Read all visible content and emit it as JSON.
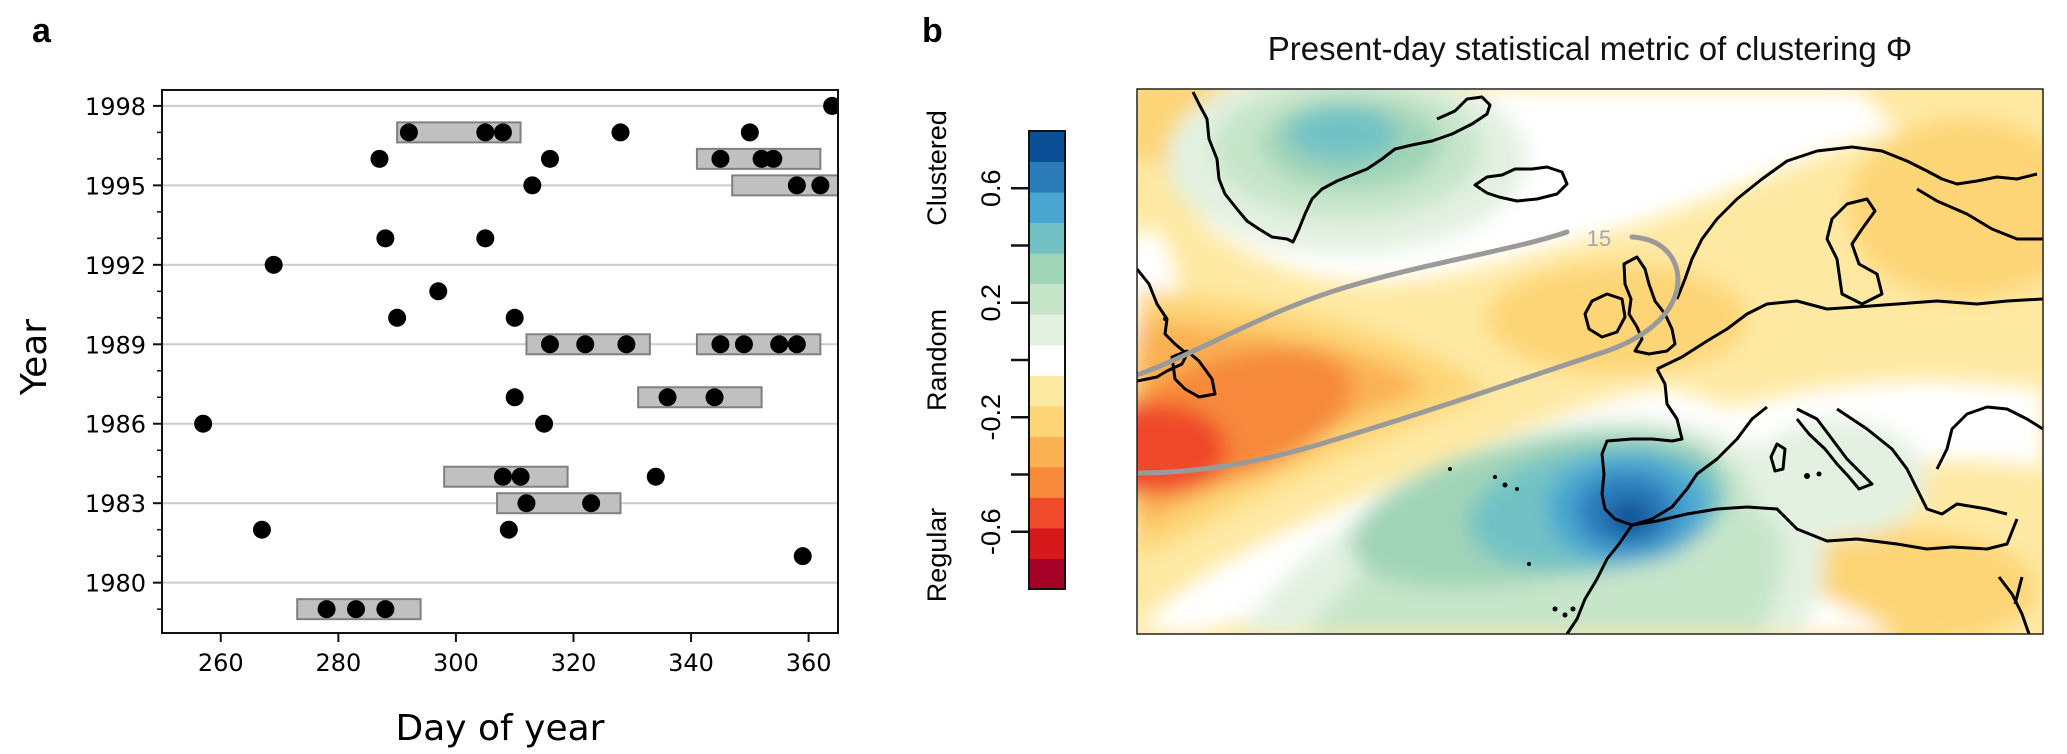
{
  "panels": {
    "a": {
      "label": "a"
    },
    "b": {
      "label": "b"
    }
  },
  "chart_data": [
    {
      "type": "scatter",
      "panel": "a",
      "title": "",
      "xlabel": "Day of year",
      "ylabel": "Year",
      "xlim": [
        250,
        365
      ],
      "ylim": [
        1978.1,
        1998.6
      ],
      "xticks": [
        260,
        280,
        300,
        320,
        340,
        360
      ],
      "yticks": [
        1980,
        1983,
        1986,
        1989,
        1992,
        1995,
        1998
      ],
      "ytick_labels": [
        "1980",
        "1983",
        "1986",
        "1989",
        "1992",
        "1995",
        "1998"
      ],
      "xtick_labels": [
        "260",
        "280",
        "300",
        "320",
        "340",
        "360"
      ],
      "yminor_step": 1,
      "grid": "horizontal at major y ticks",
      "points": [
        {
          "year": 1998,
          "day": 364
        },
        {
          "year": 1997,
          "day": 292
        },
        {
          "year": 1997,
          "day": 305
        },
        {
          "year": 1997,
          "day": 308
        },
        {
          "year": 1997,
          "day": 328
        },
        {
          "year": 1997,
          "day": 350
        },
        {
          "year": 1996,
          "day": 287
        },
        {
          "year": 1996,
          "day": 316
        },
        {
          "year": 1996,
          "day": 345
        },
        {
          "year": 1996,
          "day": 352
        },
        {
          "year": 1996,
          "day": 354
        },
        {
          "year": 1995,
          "day": 313
        },
        {
          "year": 1995,
          "day": 358
        },
        {
          "year": 1995,
          "day": 362
        },
        {
          "year": 1993,
          "day": 288
        },
        {
          "year": 1993,
          "day": 305
        },
        {
          "year": 1992,
          "day": 269
        },
        {
          "year": 1991,
          "day": 297
        },
        {
          "year": 1990,
          "day": 290
        },
        {
          "year": 1990,
          "day": 310
        },
        {
          "year": 1989,
          "day": 316
        },
        {
          "year": 1989,
          "day": 322
        },
        {
          "year": 1989,
          "day": 329
        },
        {
          "year": 1989,
          "day": 345
        },
        {
          "year": 1989,
          "day": 349
        },
        {
          "year": 1989,
          "day": 355
        },
        {
          "year": 1989,
          "day": 358
        },
        {
          "year": 1987,
          "day": 310
        },
        {
          "year": 1987,
          "day": 336
        },
        {
          "year": 1987,
          "day": 344
        },
        {
          "year": 1986,
          "day": 257
        },
        {
          "year": 1986,
          "day": 315
        },
        {
          "year": 1984,
          "day": 308
        },
        {
          "year": 1984,
          "day": 311
        },
        {
          "year": 1984,
          "day": 334
        },
        {
          "year": 1983,
          "day": 312
        },
        {
          "year": 1983,
          "day": 323
        },
        {
          "year": 1982,
          "day": 267
        },
        {
          "year": 1982,
          "day": 309
        },
        {
          "year": 1981,
          "day": 359
        },
        {
          "year": 1979,
          "day": 278
        },
        {
          "year": 1979,
          "day": 283
        },
        {
          "year": 1979,
          "day": 288
        }
      ],
      "cluster_boxes": [
        {
          "year": 1997,
          "start": 290,
          "end": 311
        },
        {
          "year": 1996,
          "start": 341,
          "end": 362
        },
        {
          "year": 1995,
          "start": 347,
          "end": 368
        },
        {
          "year": 1989,
          "start": 312,
          "end": 333
        },
        {
          "year": 1989,
          "start": 341,
          "end": 362
        },
        {
          "year": 1987,
          "start": 331,
          "end": 352
        },
        {
          "year": 1984,
          "start": 298,
          "end": 319
        },
        {
          "year": 1983,
          "start": 307,
          "end": 328
        },
        {
          "year": 1979,
          "start": 273,
          "end": 294
        }
      ],
      "colors": {
        "point": "#000000",
        "box_fill": "#c0c0c0",
        "box_edge": "#808080",
        "grid": "#cccccc"
      }
    },
    {
      "type": "heatmap",
      "panel": "b",
      "title": "Present-day statistical metric of clustering Φ",
      "region": "North Atlantic and Europe",
      "colorbar": {
        "ticks": [
          -0.6,
          -0.4,
          -0.2,
          0.0,
          0.2,
          0.4,
          0.6
        ],
        "tick_labels": [
          "-0.6",
          "",
          "-0.2",
          "",
          "0.2",
          "",
          "0.6"
        ],
        "range": [
          -0.8,
          0.8
        ],
        "category_labels": [
          "Regular",
          "Random",
          "Clustered"
        ],
        "colors_low_to_high": [
          "#a50026",
          "#d7191c",
          "#ef4a2a",
          "#f6893a",
          "#fab152",
          "#fdd577",
          "#fee9a3",
          "#ffffff",
          "#e3f1e1",
          "#c6e5c9",
          "#a0d4b7",
          "#72c2c5",
          "#49a6d1",
          "#2b7bb9",
          "#0b4f96"
        ]
      },
      "contour": {
        "label": "15",
        "color": "#999999"
      },
      "features": [
        {
          "name": "positive clustering maximum (west of Iberia)",
          "approx_value": 0.75
        },
        {
          "name": "positive clustering over Greenland",
          "approx_value": 0.35
        },
        {
          "name": "regular (negative) minimum near Newfoundland",
          "approx_value": -0.6
        },
        {
          "name": "weak negative across mid-Atlantic and northern Europe",
          "approx_value": -0.15
        }
      ]
    }
  ]
}
